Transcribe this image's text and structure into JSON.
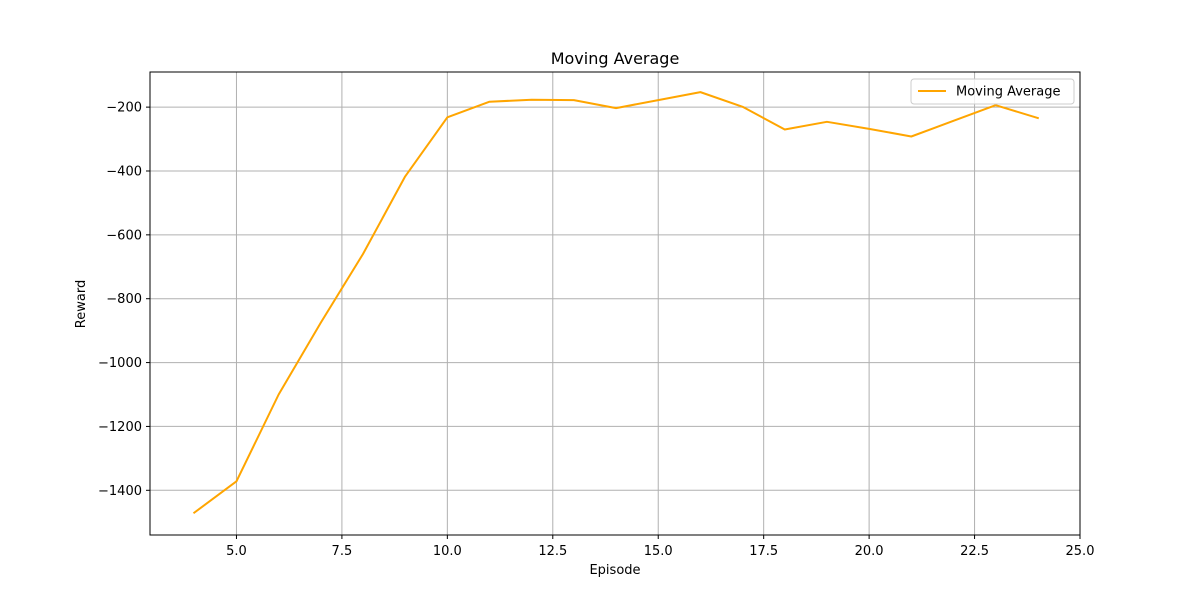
{
  "chart_data": {
    "type": "line",
    "title": "Moving Average",
    "xlabel": "Episode",
    "ylabel": "Reward",
    "xlim": [
      2.95,
      25.0
    ],
    "ylim": [
      -1540,
      -90
    ],
    "xticks": [
      5.0,
      7.5,
      10.0,
      12.5,
      15.0,
      17.5,
      20.0,
      22.5,
      25.0
    ],
    "xtick_labels": [
      "5.0",
      "7.5",
      "10.0",
      "12.5",
      "15.0",
      "17.5",
      "20.0",
      "22.5",
      "25.0"
    ],
    "yticks": [
      -1400,
      -1200,
      -1000,
      -800,
      -600,
      -400,
      -200
    ],
    "ytick_labels": [
      "−1400",
      "−1200",
      "−1000",
      "−800",
      "−600",
      "−400",
      "−200"
    ],
    "grid": true,
    "legend_position": "top-right",
    "series": [
      {
        "name": "Moving Average",
        "color": "#FFA500",
        "x": [
          4,
          5,
          6,
          7,
          8,
          9,
          10,
          11,
          12,
          13,
          14,
          15,
          16,
          17,
          18,
          19,
          20,
          21,
          22,
          23,
          24
        ],
        "y": [
          -1470,
          -1372,
          -1100,
          -875,
          -660,
          -417,
          -232,
          -183,
          -177,
          -178,
          -203,
          -178,
          -153,
          -199,
          -270,
          -246,
          -268,
          -292,
          -243,
          -194,
          -234
        ]
      }
    ]
  }
}
